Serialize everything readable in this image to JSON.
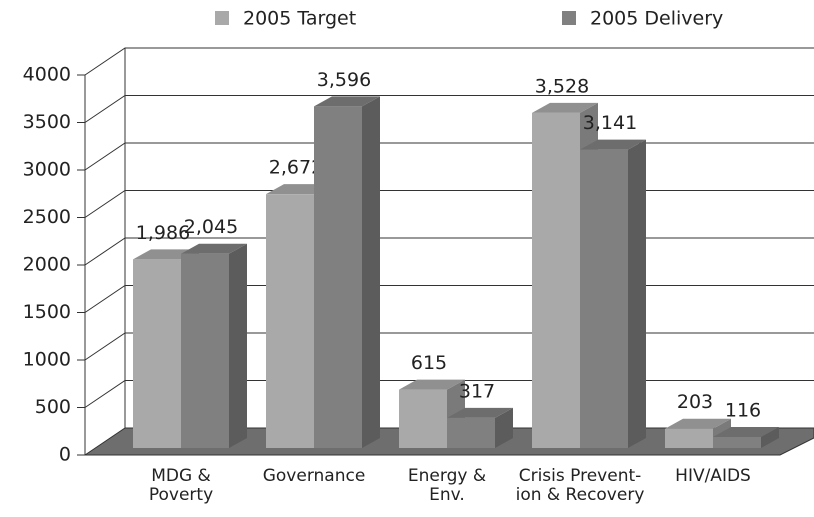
{
  "chart_data": {
    "type": "bar3d",
    "categories": [
      "MDG &\nPoverty",
      "Governance",
      "Energy &\nEnv.",
      "Crisis Prevent-\nion & Recovery",
      "HIV/AIDS"
    ],
    "series": [
      {
        "name": "2005 Target",
        "color": "#a9a9a9",
        "values": [
          1986,
          2672,
          615,
          3528,
          203
        ],
        "value_labels": [
          "1,986",
          "2,672",
          "615",
          "3,528",
          "203"
        ]
      },
      {
        "name": "2005 Delivery",
        "color": "#808080",
        "values": [
          2045,
          3596,
          317,
          3141,
          116
        ],
        "value_labels": [
          "2,045",
          "3,596",
          "317",
          "3,141",
          "116"
        ]
      }
    ],
    "ylim": [
      0,
      4000
    ],
    "yticks": [
      0,
      500,
      1000,
      1500,
      2000,
      2500,
      3000,
      3500,
      4000
    ],
    "grid": true
  }
}
